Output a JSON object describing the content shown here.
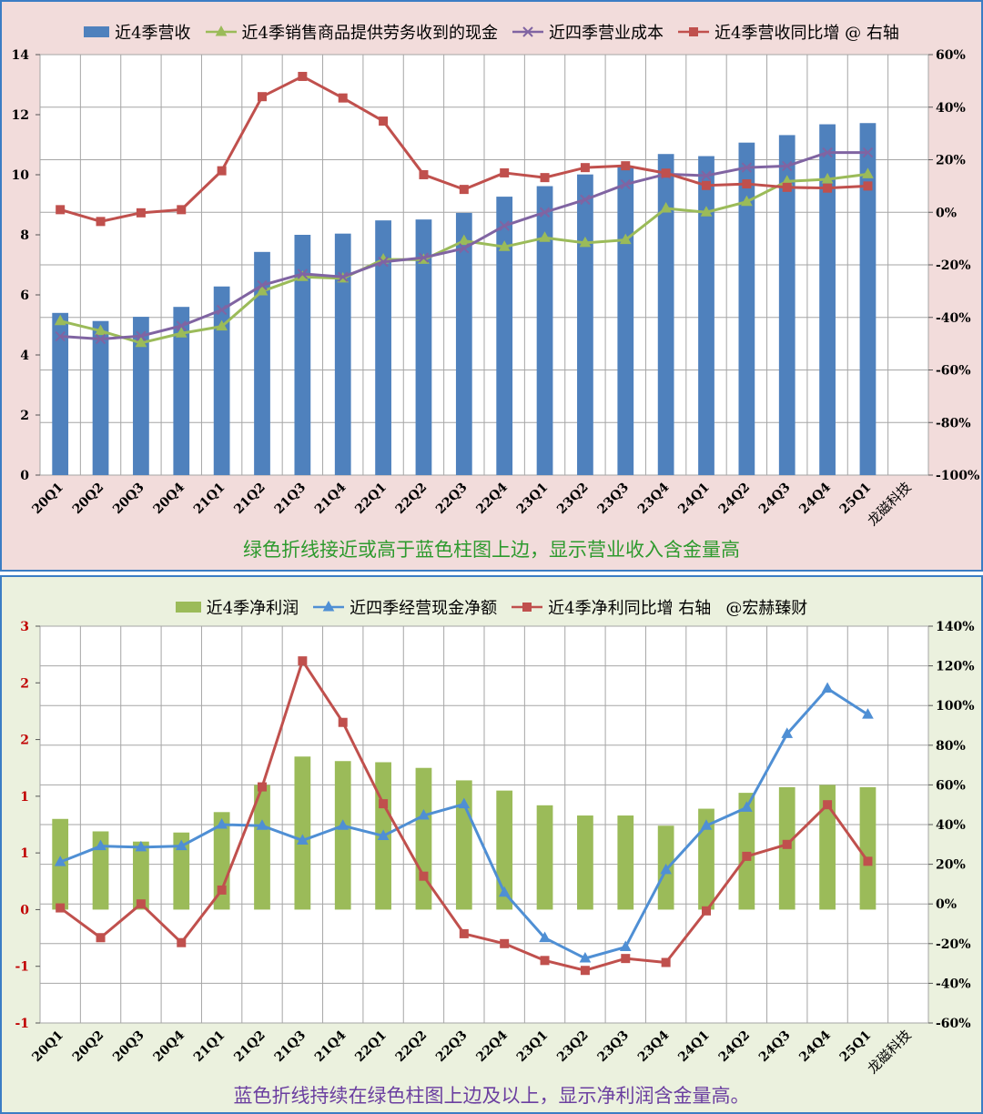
{
  "charts": [
    {
      "id": "revenue",
      "caption": "绿色折线接近或高于蓝色柱图上边，显示营业收入含金量高",
      "watermark": "龙磁科技",
      "colors": {
        "bar": "#4f81bd",
        "cash": "#9bbb59",
        "cost": "#8064a2",
        "yoy": "#c0504d",
        "bg": "#f2dcdb"
      },
      "chart_data": {
        "type": "bar",
        "categories": [
          "20Q1",
          "20Q2",
          "20Q3",
          "20Q4",
          "21Q1",
          "21Q2",
          "21Q3",
          "21Q4",
          "22Q1",
          "22Q2",
          "22Q3",
          "22Q4",
          "23Q1",
          "23Q2",
          "23Q3",
          "23Q4",
          "24Q1",
          "24Q2",
          "24Q3",
          "24Q4",
          "25Q1"
        ],
        "y_left": {
          "min": 0,
          "max": 14,
          "step": 2,
          "ticks": [
            "0",
            "2",
            "4",
            "6",
            "8",
            "10",
            "12",
            "14"
          ]
        },
        "y_right": {
          "min": -100,
          "max": 60,
          "step": 20,
          "ticks": [
            "-100%",
            "-80%",
            "-60%",
            "-40%",
            "-20%",
            "0%",
            "20%",
            "40%",
            "60%"
          ]
        },
        "series": [
          {
            "name": "近4季营收",
            "kind": "bar",
            "axis": "left",
            "color": "#4f81bd",
            "values": [
              5.4,
              5.13,
              5.27,
              5.6,
              6.28,
              7.43,
              8.0,
              8.04,
              8.48,
              8.51,
              8.73,
              9.27,
              9.62,
              10.01,
              10.29,
              10.69,
              10.62,
              11.07,
              11.32,
              11.68,
              11.72
            ]
          },
          {
            "name": "近4季销售商品提供劳务收到的现金",
            "kind": "line",
            "marker": "triangle",
            "axis": "left",
            "color": "#9bbb59",
            "values": [
              5.13,
              4.8,
              4.4,
              4.72,
              4.95,
              6.12,
              6.6,
              6.55,
              7.18,
              7.17,
              7.8,
              7.6,
              7.9,
              7.73,
              7.83,
              8.88,
              8.75,
              9.1,
              9.78,
              9.85,
              10.02
            ]
          },
          {
            "name": "近四季营业成本",
            "kind": "line",
            "marker": "x",
            "axis": "left",
            "color": "#8064a2",
            "values": [
              4.62,
              4.53,
              4.63,
              4.97,
              5.5,
              6.32,
              6.7,
              6.6,
              7.1,
              7.24,
              7.55,
              8.3,
              8.75,
              9.17,
              9.68,
              10.02,
              9.97,
              10.24,
              10.29,
              10.74,
              10.74
            ]
          },
          {
            "name": "近4季营收同比增 @ 右轴",
            "kind": "line",
            "marker": "square",
            "axis": "right",
            "color": "#c0504d",
            "values": [
              1,
              -3.5,
              -0.2,
              1,
              15.8,
              44,
              51.7,
              43.5,
              34.7,
              14.3,
              8.7,
              15,
              13.2,
              17,
              17.7,
              14.9,
              10.2,
              10.8,
              9.5,
              9.2,
              10
            ]
          }
        ]
      }
    },
    {
      "id": "profit",
      "caption": "蓝色折线持续在绿色柱图上边及以上，显示净利润含金量高。",
      "watermark": "龙磁科技",
      "legend_note": "@宏赫臻财",
      "colors": {
        "bar": "#9bbb59",
        "cfo": "#4f8fd4",
        "yoy": "#c0504d",
        "bg": "#ebf1de"
      },
      "chart_data": {
        "type": "bar",
        "categories": [
          "20Q1",
          "20Q2",
          "20Q3",
          "20Q4",
          "21Q1",
          "21Q2",
          "21Q3",
          "21Q4",
          "22Q1",
          "22Q2",
          "22Q3",
          "22Q4",
          "23Q1",
          "23Q2",
          "23Q3",
          "23Q4",
          "24Q1",
          "24Q2",
          "24Q3",
          "24Q4",
          "25Q1"
        ],
        "y_left": {
          "min": -1,
          "max": 2.5,
          "step": 0.25,
          "ticks": [
            "-1",
            "-1",
            "0",
            "1",
            "1",
            "2",
            "2",
            "3"
          ]
        },
        "y_right": {
          "min": -60,
          "max": 140,
          "step": 20,
          "ticks": [
            "-60%",
            "-40%",
            "-20%",
            "0%",
            "20%",
            "40%",
            "60%",
            "80%",
            "100%",
            "120%",
            "140%"
          ]
        },
        "series": [
          {
            "name": "近4季净利润",
            "kind": "bar",
            "axis": "left",
            "color": "#9bbb59",
            "values": [
              0.8,
              0.69,
              0.6,
              0.68,
              0.86,
              1.1,
              1.35,
              1.31,
              1.3,
              1.25,
              1.14,
              1.05,
              0.92,
              0.83,
              0.83,
              0.74,
              0.89,
              1.03,
              1.08,
              1.1,
              1.08
            ]
          },
          {
            "name": "近四季经营现金净额",
            "kind": "line",
            "marker": "triangle",
            "axis": "left",
            "color": "#4f8fd4",
            "values": [
              0.42,
              0.56,
              0.55,
              0.56,
              0.75,
              0.74,
              0.61,
              0.74,
              0.65,
              0.83,
              0.93,
              0.15,
              -0.25,
              -0.43,
              -0.33,
              0.35,
              0.74,
              0.9,
              1.55,
              1.95,
              1.72
            ]
          },
          {
            "name": "近4季净利同比增 右轴",
            "kind": "line",
            "marker": "square",
            "axis": "right",
            "color": "#c0504d",
            "values": [
              -2,
              -17,
              0,
              -19.5,
              7,
              59,
              122.5,
              91.5,
              50.5,
              14,
              -15,
              -20,
              -28.5,
              -33.5,
              -27.5,
              -29.5,
              -3.5,
              24,
              30,
              50,
              21.5
            ]
          }
        ]
      }
    }
  ]
}
